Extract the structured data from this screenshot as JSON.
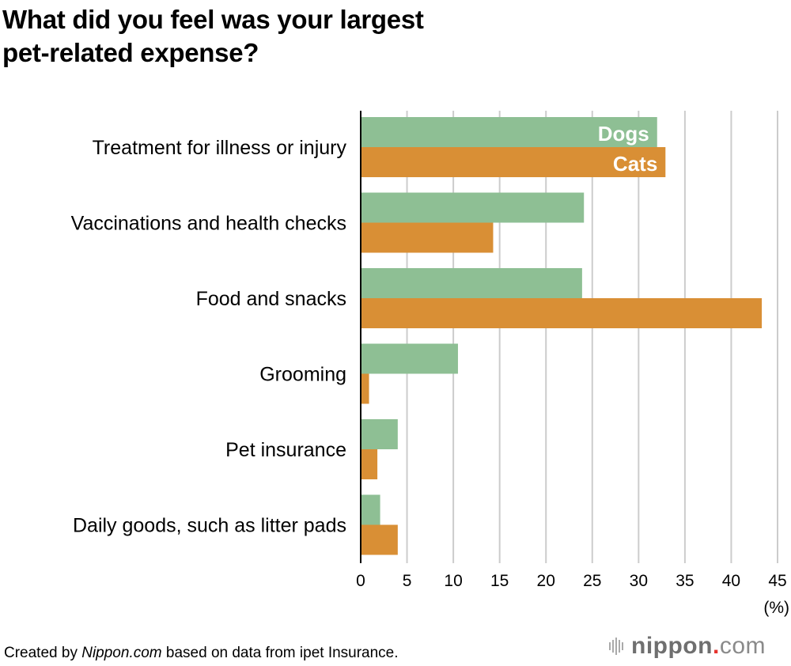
{
  "title_lines": [
    "What did you feel was your largest",
    "pet-related expense?"
  ],
  "footer": {
    "prefix": "Created by ",
    "source_site": "Nippon.com",
    "suffix": " based on data from ipet Insurance."
  },
  "logo": {
    "name": "nippon",
    "dot": ".",
    "tld": "com"
  },
  "colors": {
    "dogs": "#8ebf94",
    "cats": "#d98f35",
    "grid": "#cccccc",
    "axis": "#000000"
  },
  "chart_data": {
    "type": "bar",
    "orientation": "horizontal",
    "title": "What did you feel was your largest pet-related expense?",
    "xlabel": "(%)",
    "ylabel": "",
    "xlim": [
      0,
      45
    ],
    "xticks": [
      0,
      5,
      10,
      15,
      20,
      25,
      30,
      35,
      40,
      45
    ],
    "grid": true,
    "legend": "inline labels on first category bars",
    "categories": [
      "Treatment for illness or injury",
      "Vaccinations and health checks",
      "Food and snacks",
      "Grooming",
      "Pet insurance",
      "Daily goods, such as litter pads"
    ],
    "series": [
      {
        "name": "Dogs",
        "values": [
          32.0,
          24.1,
          23.9,
          10.5,
          4.0,
          2.1
        ]
      },
      {
        "name": "Cats",
        "values": [
          32.9,
          14.3,
          43.3,
          0.9,
          1.8,
          4.0
        ]
      }
    ]
  }
}
